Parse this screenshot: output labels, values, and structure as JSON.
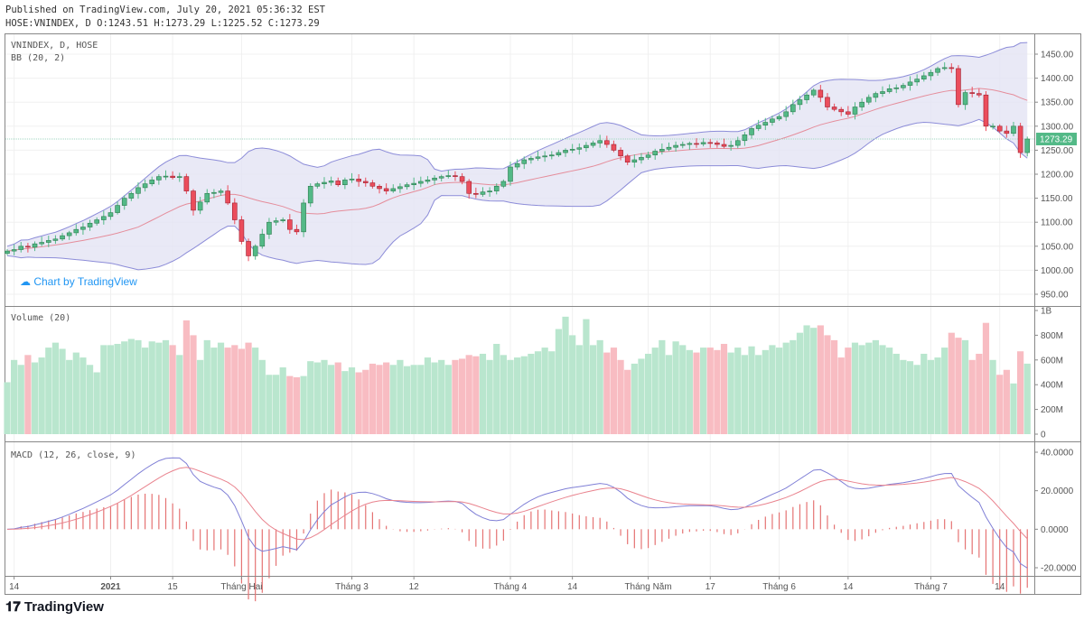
{
  "header": {
    "published": "Published on TradingView.com, July 20, 2021 05:36:32 EST",
    "ohlc": "HOSE:VNINDEX, D O:1243.51 H:1273.29 L:1225.52 C:1273.29"
  },
  "watermark": "Chart by TradingView",
  "logo": "TradingView",
  "colors": {
    "up": "#53b987",
    "down": "#eb4d5c",
    "vol_up": "#b9e6ce",
    "vol_down": "#f8bcc2",
    "bb_fill": "#e3e3f4",
    "bb_line": "#8c8cd8",
    "basis": "#e58d9b",
    "macd": "#7f7fd6",
    "signal": "#e9838e",
    "hist": "#e57373"
  },
  "chart_data": {
    "type": "candlestick",
    "title": "VNINDEX, D, HOSE",
    "indicators": {
      "bb": "BB (20, 2)",
      "volume": "Volume (20)",
      "macd": "MACD (12, 26, close, 9)"
    },
    "last_price": "1273.29",
    "first_open": 1035,
    "price_ticks": [
      "1450.00",
      "1400.00",
      "1350.00",
      "1300.00",
      "1250.00",
      "1200.00",
      "1150.00",
      "1100.00",
      "1050.00",
      "1000.00",
      "950.00"
    ],
    "price_range": [
      950,
      1450
    ],
    "volume_ticks": [
      "1B",
      "800M",
      "600M",
      "400M",
      "200M",
      "0"
    ],
    "volume_range_millions": [
      0,
      1000
    ],
    "macd_ticks": [
      "40.0000",
      "20.0000",
      "0.0000",
      "-20.0000"
    ],
    "macd_range": [
      -20,
      40
    ],
    "x_ticks": [
      {
        "label": "14",
        "i": 1
      },
      {
        "label": "2021",
        "i": 15
      },
      {
        "label": "15",
        "i": 24
      },
      {
        "label": "Tháng Hai",
        "i": 34
      },
      {
        "label": "Tháng 3",
        "i": 50
      },
      {
        "label": "12",
        "i": 59
      },
      {
        "label": "Tháng 4",
        "i": 73
      },
      {
        "label": "14",
        "i": 82
      },
      {
        "label": "Tháng Năm",
        "i": 93
      },
      {
        "label": "17",
        "i": 102
      },
      {
        "label": "Tháng 6",
        "i": 112
      },
      {
        "label": "14",
        "i": 122
      },
      {
        "label": "Tháng 7",
        "i": 134
      },
      {
        "label": "14",
        "i": 144
      }
    ],
    "close": [
      1040,
      1043,
      1050,
      1048,
      1055,
      1058,
      1062,
      1065,
      1072,
      1078,
      1085,
      1090,
      1098,
      1105,
      1112,
      1120,
      1135,
      1150,
      1160,
      1172,
      1180,
      1188,
      1195,
      1196,
      1193,
      1195,
      1165,
      1125,
      1142,
      1160,
      1162,
      1165,
      1140,
      1105,
      1060,
      1030,
      1050,
      1075,
      1100,
      1103,
      1105,
      1085,
      1080,
      1140,
      1175,
      1180,
      1183,
      1186,
      1178,
      1188,
      1190,
      1185,
      1182,
      1175,
      1170,
      1165,
      1170,
      1174,
      1178,
      1181,
      1185,
      1188,
      1192,
      1195,
      1197,
      1195,
      1185,
      1160,
      1158,
      1163,
      1165,
      1175,
      1185,
      1215,
      1222,
      1230,
      1233,
      1236,
      1238,
      1240,
      1245,
      1250,
      1252,
      1255,
      1260,
      1265,
      1270,
      1262,
      1250,
      1238,
      1225,
      1230,
      1235,
      1240,
      1248,
      1252,
      1256,
      1260,
      1262,
      1264,
      1263,
      1266,
      1265,
      1262,
      1258,
      1260,
      1270,
      1282,
      1295,
      1302,
      1308,
      1315,
      1320,
      1330,
      1345,
      1355,
      1365,
      1375,
      1360,
      1340,
      1335,
      1330,
      1325,
      1340,
      1350,
      1360,
      1368,
      1372,
      1378,
      1380,
      1385,
      1392,
      1398,
      1405,
      1412,
      1420,
      1422,
      1420,
      1345,
      1370,
      1368,
      1365,
      1300,
      1300,
      1290,
      1285,
      1300,
      1245,
      1273.29
    ],
    "volume_millions": [
      420,
      600,
      560,
      640,
      580,
      620,
      700,
      740,
      690,
      600,
      660,
      620,
      560,
      500,
      720,
      720,
      730,
      750,
      770,
      760,
      700,
      750,
      740,
      760,
      720,
      640,
      920,
      800,
      600,
      760,
      700,
      740,
      700,
      720,
      690,
      740,
      700,
      600,
      480,
      480,
      540,
      470,
      460,
      470,
      590,
      580,
      600,
      560,
      580,
      510,
      540,
      500,
      520,
      570,
      560,
      580,
      560,
      600,
      550,
      560,
      560,
      620,
      580,
      600,
      560,
      600,
      610,
      640,
      630,
      650,
      600,
      730,
      640,
      600,
      620,
      630,
      650,
      670,
      700,
      670,
      850,
      950,
      800,
      720,
      930,
      720,
      760,
      660,
      700,
      600,
      520,
      570,
      610,
      650,
      700,
      760,
      640,
      750,
      720,
      680,
      660,
      700,
      700,
      680,
      730,
      660,
      700,
      640,
      710,
      640,
      680,
      720,
      700,
      740,
      760,
      820,
      880,
      860,
      880,
      800,
      760,
      620,
      700,
      740,
      720,
      740,
      760,
      720,
      700,
      650,
      600,
      590,
      560,
      650,
      600,
      620,
      700,
      820,
      780,
      760,
      600,
      650,
      900,
      600,
      480,
      520,
      410,
      670,
      570
    ]
  }
}
